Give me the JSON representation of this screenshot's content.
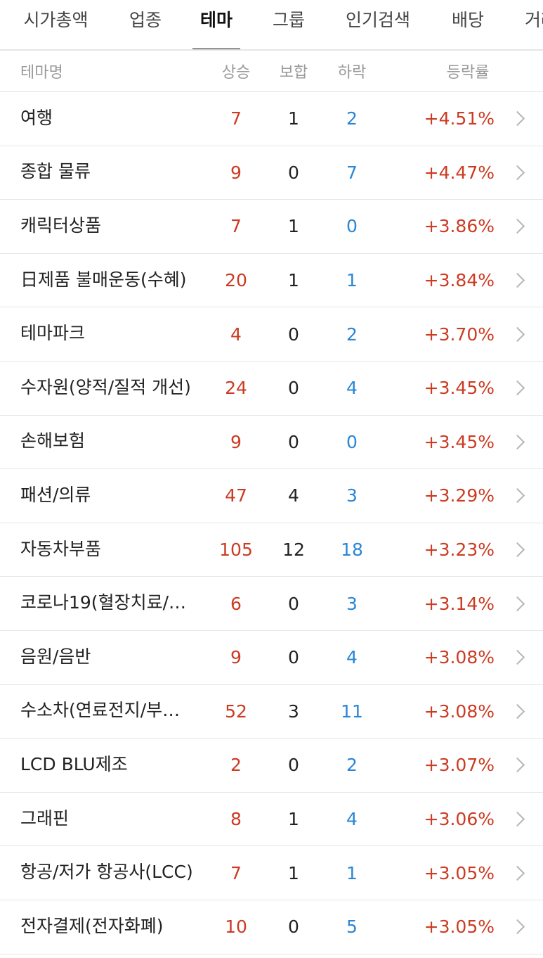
{
  "tabs": [
    {
      "label": "시가총액",
      "active": false
    },
    {
      "label": "업종",
      "active": false
    },
    {
      "label": "테마",
      "active": true
    },
    {
      "label": "그룹",
      "active": false
    },
    {
      "label": "인기검색",
      "active": false
    },
    {
      "label": "배당",
      "active": false
    },
    {
      "label": "거래",
      "active": false
    }
  ],
  "header": {
    "name": "테마명",
    "up": "상승",
    "flat": "보합",
    "down": "하락",
    "rate": "등락률"
  },
  "colors": {
    "up": "#cc3b22",
    "down": "#2b86d6",
    "text": "#222222",
    "muted": "#9a9a9a"
  },
  "rows": [
    {
      "name": "여행",
      "up": "7",
      "flat": "1",
      "down": "2",
      "rate": "+4.51%"
    },
    {
      "name": "종합 물류",
      "up": "9",
      "flat": "0",
      "down": "7",
      "rate": "+4.47%"
    },
    {
      "name": "캐릭터상품",
      "up": "7",
      "flat": "1",
      "down": "0",
      "rate": "+3.86%"
    },
    {
      "name": "日제품 불매운동(수혜)",
      "up": "20",
      "flat": "1",
      "down": "1",
      "rate": "+3.84%"
    },
    {
      "name": "테마파크",
      "up": "4",
      "flat": "0",
      "down": "2",
      "rate": "+3.70%"
    },
    {
      "name": "수자원(양적/질적 개선)",
      "up": "24",
      "flat": "0",
      "down": "4",
      "rate": "+3.45%"
    },
    {
      "name": "손해보험",
      "up": "9",
      "flat": "0",
      "down": "0",
      "rate": "+3.45%"
    },
    {
      "name": "패션/의류",
      "up": "47",
      "flat": "4",
      "down": "3",
      "rate": "+3.29%"
    },
    {
      "name": "자동차부품",
      "up": "105",
      "flat": "12",
      "down": "18",
      "rate": "+3.23%"
    },
    {
      "name": "코로나19(혈장치료/…",
      "up": "6",
      "flat": "0",
      "down": "3",
      "rate": "+3.14%"
    },
    {
      "name": "음원/음반",
      "up": "9",
      "flat": "0",
      "down": "4",
      "rate": "+3.08%"
    },
    {
      "name": "수소차(연료전지/부…",
      "up": "52",
      "flat": "3",
      "down": "11",
      "rate": "+3.08%"
    },
    {
      "name": "LCD BLU제조",
      "up": "2",
      "flat": "0",
      "down": "2",
      "rate": "+3.07%"
    },
    {
      "name": "그래핀",
      "up": "8",
      "flat": "1",
      "down": "4",
      "rate": "+3.06%"
    },
    {
      "name": "항공/저가 항공사(LCC)",
      "up": "7",
      "flat": "1",
      "down": "1",
      "rate": "+3.05%"
    },
    {
      "name": "전자결제(전자화폐)",
      "up": "10",
      "flat": "0",
      "down": "5",
      "rate": "+3.05%"
    }
  ],
  "row_icon": "chevron-right-icon"
}
